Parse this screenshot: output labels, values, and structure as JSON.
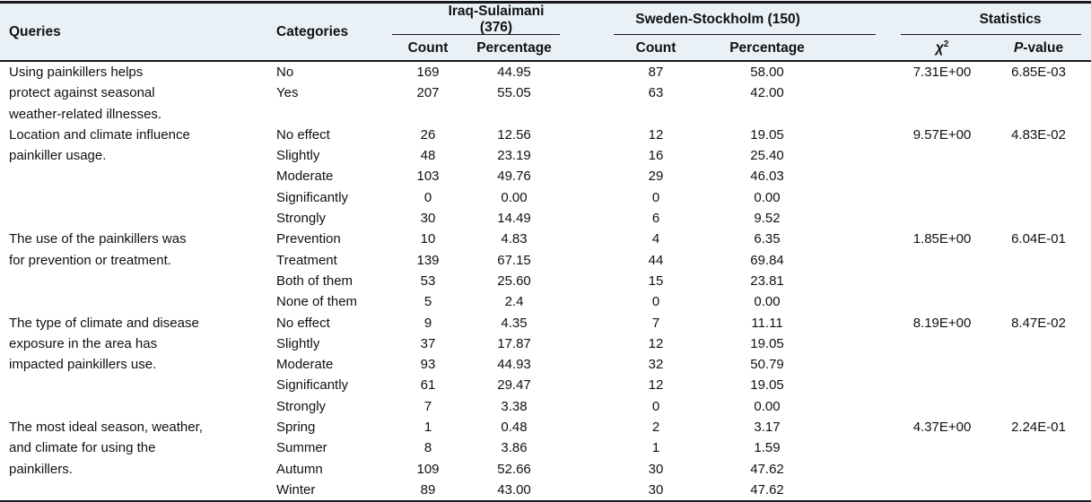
{
  "table": {
    "header": {
      "queries": "Queries",
      "categories": "Categories",
      "group_iraq": "Iraq-Sulaimani (376)",
      "group_sweden": "Sweden-Stockholm (150)",
      "group_statistics": "Statistics",
      "count": "Count",
      "percentage": "Percentage",
      "chi_base": "χ",
      "chi_sup": "2",
      "p_italic": "P",
      "p_rest": "-value"
    },
    "colors": {
      "header_background": "#e9f1f7",
      "rule_color": "#181820",
      "text_color": "#111111"
    },
    "blocks": [
      {
        "query": "Using painkillers helps\nprotect against seasonal\nweather-related illnesses.",
        "chi_square": "7.31E+00",
        "p_value": "6.85E-03",
        "extra_rows": 1,
        "rows": [
          {
            "category": "No",
            "iraq_count": "169",
            "iraq_percentage": "44.95",
            "sweden_count": "87",
            "sweden_percentage": "58.00"
          },
          {
            "category": "Yes",
            "iraq_count": "207",
            "iraq_percentage": "55.05",
            "sweden_count": "63",
            "sweden_percentage": "42.00"
          }
        ]
      },
      {
        "query": "Location and climate influence\npainkiller usage.",
        "chi_square": "9.57E+00",
        "p_value": "4.83E-02",
        "extra_rows": 0,
        "rows": [
          {
            "category": "No effect",
            "iraq_count": "26",
            "iraq_percentage": "12.56",
            "sweden_count": "12",
            "sweden_percentage": "19.05"
          },
          {
            "category": "Slightly",
            "iraq_count": "48",
            "iraq_percentage": "23.19",
            "sweden_count": "16",
            "sweden_percentage": "25.40"
          },
          {
            "category": "Moderate",
            "iraq_count": "103",
            "iraq_percentage": "49.76",
            "sweden_count": "29",
            "sweden_percentage": "46.03"
          },
          {
            "category": "Significantly",
            "iraq_count": "0",
            "iraq_percentage": "0.00",
            "sweden_count": "0",
            "sweden_percentage": "0.00"
          },
          {
            "category": "Strongly",
            "iraq_count": "30",
            "iraq_percentage": "14.49",
            "sweden_count": "6",
            "sweden_percentage": "9.52"
          }
        ]
      },
      {
        "query": "The use of the painkillers was\nfor prevention or treatment.",
        "chi_square": "1.85E+00",
        "p_value": "6.04E-01",
        "extra_rows": 0,
        "rows": [
          {
            "category": "Prevention",
            "iraq_count": "10",
            "iraq_percentage": "4.83",
            "sweden_count": "4",
            "sweden_percentage": "6.35"
          },
          {
            "category": "Treatment",
            "iraq_count": "139",
            "iraq_percentage": "67.15",
            "sweden_count": "44",
            "sweden_percentage": "69.84"
          },
          {
            "category": "Both of them",
            "iraq_count": "53",
            "iraq_percentage": "25.60",
            "sweden_count": "15",
            "sweden_percentage": "23.81"
          },
          {
            "category": "None of them",
            "iraq_count": "5",
            "iraq_percentage": "2.4",
            "sweden_count": "0",
            "sweden_percentage": "0.00"
          }
        ]
      },
      {
        "query": "The type of climate and disease\nexposure in the area has\nimpacted painkillers use.",
        "chi_square": "8.19E+00",
        "p_value": "8.47E-02",
        "extra_rows": 0,
        "rows": [
          {
            "category": "No effect",
            "iraq_count": "9",
            "iraq_percentage": "4.35",
            "sweden_count": "7",
            "sweden_percentage": "11.11"
          },
          {
            "category": "Slightly",
            "iraq_count": "37",
            "iraq_percentage": "17.87",
            "sweden_count": "12",
            "sweden_percentage": "19.05"
          },
          {
            "category": "Moderate",
            "iraq_count": "93",
            "iraq_percentage": "44.93",
            "sweden_count": "32",
            "sweden_percentage": "50.79"
          },
          {
            "category": "Significantly",
            "iraq_count": "61",
            "iraq_percentage": "29.47",
            "sweden_count": "12",
            "sweden_percentage": "19.05"
          },
          {
            "category": "Strongly",
            "iraq_count": "7",
            "iraq_percentage": "3.38",
            "sweden_count": "0",
            "sweden_percentage": "0.00"
          }
        ]
      },
      {
        "query": "The most ideal season, weather,\nand climate for using the\npainkillers.",
        "chi_square": "4.37E+00",
        "p_value": "2.24E-01",
        "extra_rows": 0,
        "rows": [
          {
            "category": "Spring",
            "iraq_count": "1",
            "iraq_percentage": "0.48",
            "sweden_count": "2",
            "sweden_percentage": "3.17"
          },
          {
            "category": "Summer",
            "iraq_count": "8",
            "iraq_percentage": "3.86",
            "sweden_count": "1",
            "sweden_percentage": "1.59"
          },
          {
            "category": "Autumn",
            "iraq_count": "109",
            "iraq_percentage": "52.66",
            "sweden_count": "30",
            "sweden_percentage": "47.62"
          },
          {
            "category": "Winter",
            "iraq_count": "89",
            "iraq_percentage": "43.00",
            "sweden_count": "30",
            "sweden_percentage": "47.62"
          }
        ]
      }
    ]
  }
}
